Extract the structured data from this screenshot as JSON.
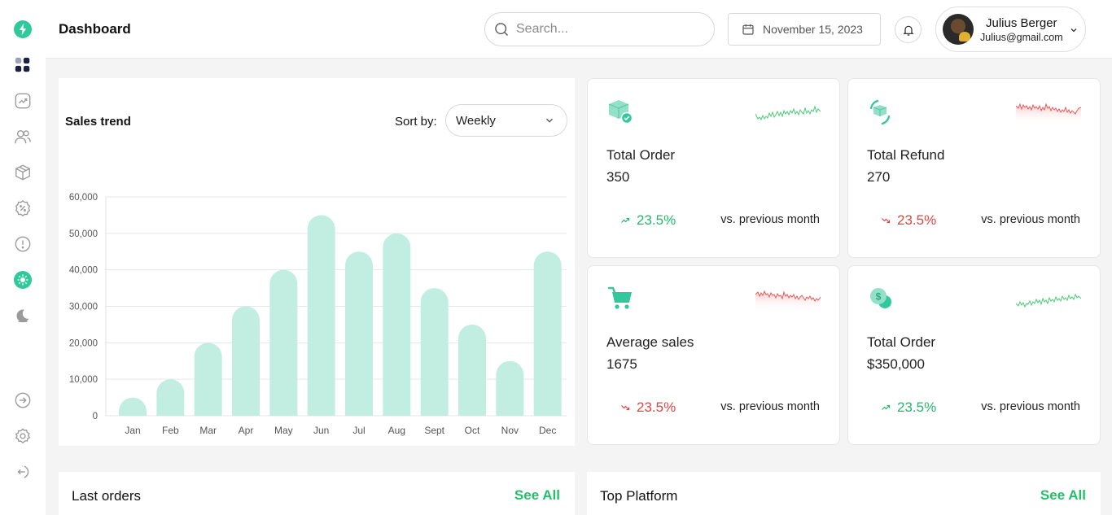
{
  "header": {
    "title": "Dashboard",
    "search_placeholder": "Search...",
    "date": "November 15, 2023",
    "user": {
      "name": "Julius Berger",
      "email": "Julius@gmail.com"
    }
  },
  "sidebar": {
    "items": [
      "logo-icon",
      "dashboard-icon",
      "analytics-icon",
      "users-icon",
      "box-icon",
      "discount-icon",
      "alert-icon",
      "sun-icon",
      "moon-icon",
      "login-icon",
      "settings-icon",
      "logout-icon"
    ],
    "accent": "#2fc99c"
  },
  "sales": {
    "title": "Sales trend",
    "sort_label": "Sort by:",
    "sort_value": "Weekly"
  },
  "chart_data": {
    "type": "bar",
    "categories": [
      "Jan",
      "Feb",
      "Mar",
      "Apr",
      "May",
      "Jun",
      "Jul",
      "Aug",
      "Sept",
      "Oct",
      "Nov",
      "Dec"
    ],
    "values": [
      5000,
      10000,
      20000,
      30000,
      40000,
      55000,
      45000,
      50000,
      35000,
      25000,
      15000,
      45000
    ],
    "ylim": [
      0,
      60000
    ],
    "yticks": [
      "0",
      "10,000",
      "20,000",
      "30,000",
      "40,000",
      "50,000",
      "60,000"
    ],
    "grid": true,
    "color": "#c2eee1"
  },
  "cards": [
    {
      "label": "Total Order",
      "value": "350",
      "trend": "23.5%",
      "direction": "up",
      "vs": "vs. previous month",
      "icon": "box-check-icon"
    },
    {
      "label": "Total Refund",
      "value": "270",
      "trend": "23.5%",
      "direction": "down",
      "vs": "vs. previous month",
      "icon": "refund-box-icon"
    },
    {
      "label": "Average sales",
      "value": "1675",
      "trend": "23.5%",
      "direction": "down",
      "vs": "vs. previous month",
      "icon": "cart-icon"
    },
    {
      "label": "Total Order",
      "value": "$350,000",
      "trend": "23.5%",
      "direction": "up",
      "vs": "vs. previous month",
      "icon": "coins-icon"
    }
  ],
  "bottom": {
    "last_orders": {
      "title": "Last orders",
      "link": "See All"
    },
    "top_platform": {
      "title": "Top Platform",
      "link": "See All"
    }
  }
}
